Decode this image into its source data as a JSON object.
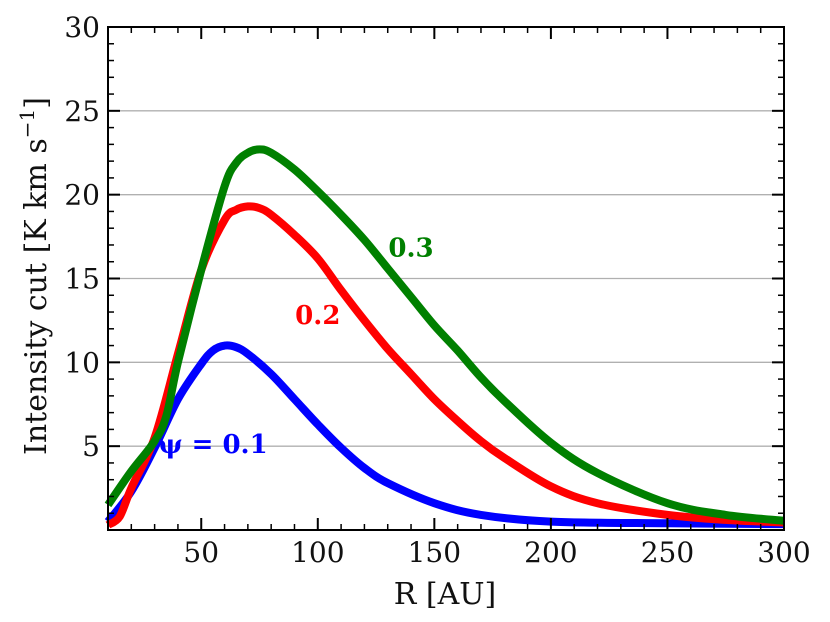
{
  "chart_data": {
    "type": "line",
    "title": "",
    "xlabel": "R [AU]",
    "ylabel": "Intensity cut [K km s",
    "ylabel_superscript": "−1",
    "ylabel_suffix": "]",
    "xlim": [
      10,
      300
    ],
    "ylim": [
      0,
      30
    ],
    "xticks": [
      50,
      100,
      150,
      200,
      250,
      300
    ],
    "xtick_labels": [
      "50",
      "100",
      "150",
      "200",
      "250",
      "300"
    ],
    "yticks": [
      5,
      10,
      15,
      20,
      25,
      30
    ],
    "ytick_labels": [
      "5",
      "10",
      "15",
      "20",
      "25",
      "30"
    ],
    "grid": "horizontal",
    "series": [
      {
        "name": "ψ = 0.1",
        "label": "ψ = 0.1",
        "color": "#0000ff",
        "label_at": [
          55,
          4.6
        ],
        "x": [
          10,
          20,
          30,
          40,
          50,
          55,
          60,
          65,
          70,
          80,
          90,
          100,
          110,
          120,
          130,
          150,
          170,
          200,
          250,
          300
        ],
        "y": [
          0.5,
          2.3,
          4.9,
          7.8,
          9.9,
          10.7,
          11.0,
          10.9,
          10.5,
          9.3,
          7.8,
          6.3,
          4.9,
          3.7,
          2.8,
          1.6,
          0.9,
          0.5,
          0.4,
          0.35
        ]
      },
      {
        "name": "0.2",
        "label": "0.2",
        "color": "#ff0000",
        "label_at": [
          100,
          12.3
        ],
        "x": [
          10,
          15,
          20,
          30,
          40,
          50,
          60,
          65,
          70,
          75,
          80,
          90,
          100,
          110,
          120,
          130,
          140,
          150,
          160,
          170,
          180,
          200,
          220,
          250,
          275,
          300
        ],
        "y": [
          0.3,
          0.8,
          2.5,
          5.5,
          10.5,
          15.5,
          18.5,
          19.1,
          19.3,
          19.2,
          18.8,
          17.6,
          16.2,
          14.3,
          12.5,
          10.8,
          9.3,
          7.8,
          6.5,
          5.3,
          4.3,
          2.6,
          1.6,
          0.9,
          0.6,
          0.45
        ]
      },
      {
        "name": "0.3",
        "label": "0.3",
        "color": "#008000",
        "label_at": [
          140,
          16.3
        ],
        "x": [
          10,
          20,
          30,
          35,
          40,
          50,
          60,
          65,
          70,
          75,
          80,
          90,
          100,
          110,
          120,
          130,
          140,
          150,
          160,
          170,
          180,
          200,
          220,
          250,
          275,
          300
        ],
        "y": [
          1.5,
          3.5,
          5.3,
          6.8,
          10.0,
          15.5,
          20.5,
          21.9,
          22.5,
          22.7,
          22.5,
          21.5,
          20.2,
          18.8,
          17.3,
          15.6,
          13.9,
          12.2,
          10.7,
          9.1,
          7.7,
          5.2,
          3.4,
          1.6,
          0.9,
          0.55
        ]
      }
    ]
  }
}
